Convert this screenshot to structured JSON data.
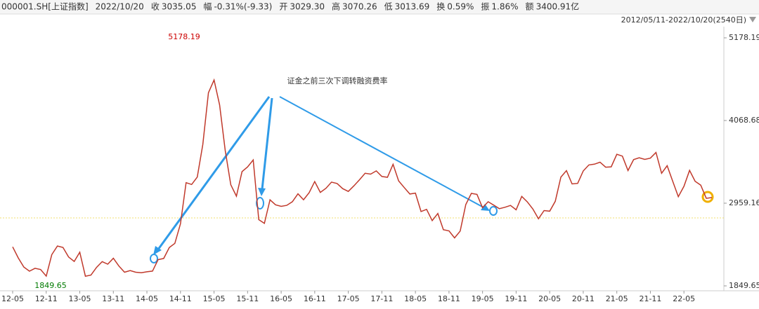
{
  "header": {
    "items": [
      {
        "value": "000001.SH[上证指数]"
      },
      {
        "value": "2022/10/20"
      },
      {
        "label": "收",
        "value": "3035.05"
      },
      {
        "label": "幅",
        "value": "-0.31%(-9.33)"
      },
      {
        "label": "开",
        "value": "3029.30"
      },
      {
        "label": "高",
        "value": "3070.26"
      },
      {
        "label": "低",
        "value": "3013.69"
      },
      {
        "label": "换",
        "value": "0.59%"
      },
      {
        "label": "振",
        "value": "1.86%"
      },
      {
        "label": "额",
        "value": "3400.91亿"
      }
    ],
    "range": "2012/05/11-2022/10/20(2540日)"
  },
  "chart_data": {
    "type": "line",
    "color": "#c0392b",
    "categories": [
      "12-05",
      null,
      null,
      null,
      null,
      null,
      "12-11",
      null,
      null,
      null,
      null,
      null,
      "13-05",
      null,
      null,
      null,
      null,
      null,
      "13-11",
      null,
      null,
      null,
      null,
      null,
      "14-05",
      null,
      null,
      null,
      null,
      null,
      "14-11",
      null,
      null,
      null,
      null,
      null,
      "15-05",
      null,
      null,
      null,
      null,
      null,
      "15-11",
      null,
      null,
      null,
      null,
      null,
      "16-05",
      null,
      null,
      null,
      null,
      null,
      "16-11",
      null,
      null,
      null,
      null,
      null,
      "17-05",
      null,
      null,
      null,
      null,
      null,
      "17-11",
      null,
      null,
      null,
      null,
      null,
      "18-05",
      null,
      null,
      null,
      null,
      null,
      "18-11",
      null,
      null,
      null,
      null,
      null,
      "19-05",
      null,
      null,
      null,
      null,
      null,
      "19-11",
      null,
      null,
      null,
      null,
      null,
      "20-05",
      null,
      null,
      null,
      null,
      null,
      "20-11",
      null,
      null,
      null,
      null,
      null,
      "21-05",
      null,
      null,
      null,
      null,
      null,
      "21-11",
      null,
      null,
      null,
      null,
      null,
      "22-05",
      null,
      null,
      null,
      null,
      null
    ],
    "values": [
      2373,
      2225,
      2103,
      2047,
      2086,
      2069,
      1980,
      2269,
      2385,
      2366,
      2237,
      2178,
      2301,
      1979,
      1994,
      2098,
      2175,
      2141,
      2220,
      2116,
      2033,
      2056,
      2033,
      2026,
      2039,
      2048,
      2202,
      2217,
      2364,
      2420,
      2683,
      3235,
      3210,
      3310,
      3748,
      4442,
      4612,
      4277,
      3664,
      3206,
      3053,
      3383,
      3446,
      3539,
      2738,
      2688,
      3004,
      2938,
      2917,
      2930,
      2979,
      3085,
      3005,
      3100,
      3250,
      3104,
      3159,
      3242,
      3223,
      3155,
      3117,
      3192,
      3273,
      3361,
      3349,
      3393,
      3317,
      3307,
      3481,
      3259,
      3169,
      3082,
      3095,
      2847,
      2876,
      2725,
      2821,
      2603,
      2588,
      2494,
      2585,
      2941,
      3091,
      3078,
      2899,
      2979,
      2933,
      2886,
      2905,
      2929,
      2871,
      3050,
      2977,
      2880,
      2750,
      2860,
      2852,
      2985,
      3310,
      3396,
      3218,
      3225,
      3392,
      3473,
      3483,
      3509,
      3442,
      3447,
      3615,
      3591,
      3397,
      3544,
      3568,
      3547,
      3564,
      3640,
      3361,
      3462,
      3252,
      3047,
      3186,
      3399,
      3253,
      3202,
      3024,
      3035
    ],
    "ylim": [
      1849.65,
      5178.19
    ],
    "yticks": [
      5178.19,
      4068.68,
      2959.16,
      1849.65
    ],
    "annotations": [
      {
        "text": "5178.19",
        "color": "#cc0000"
      },
      {
        "text": "1849.65",
        "color": "#007a00"
      },
      {
        "text": "证金之前三次下调转融资费率"
      }
    ]
  }
}
